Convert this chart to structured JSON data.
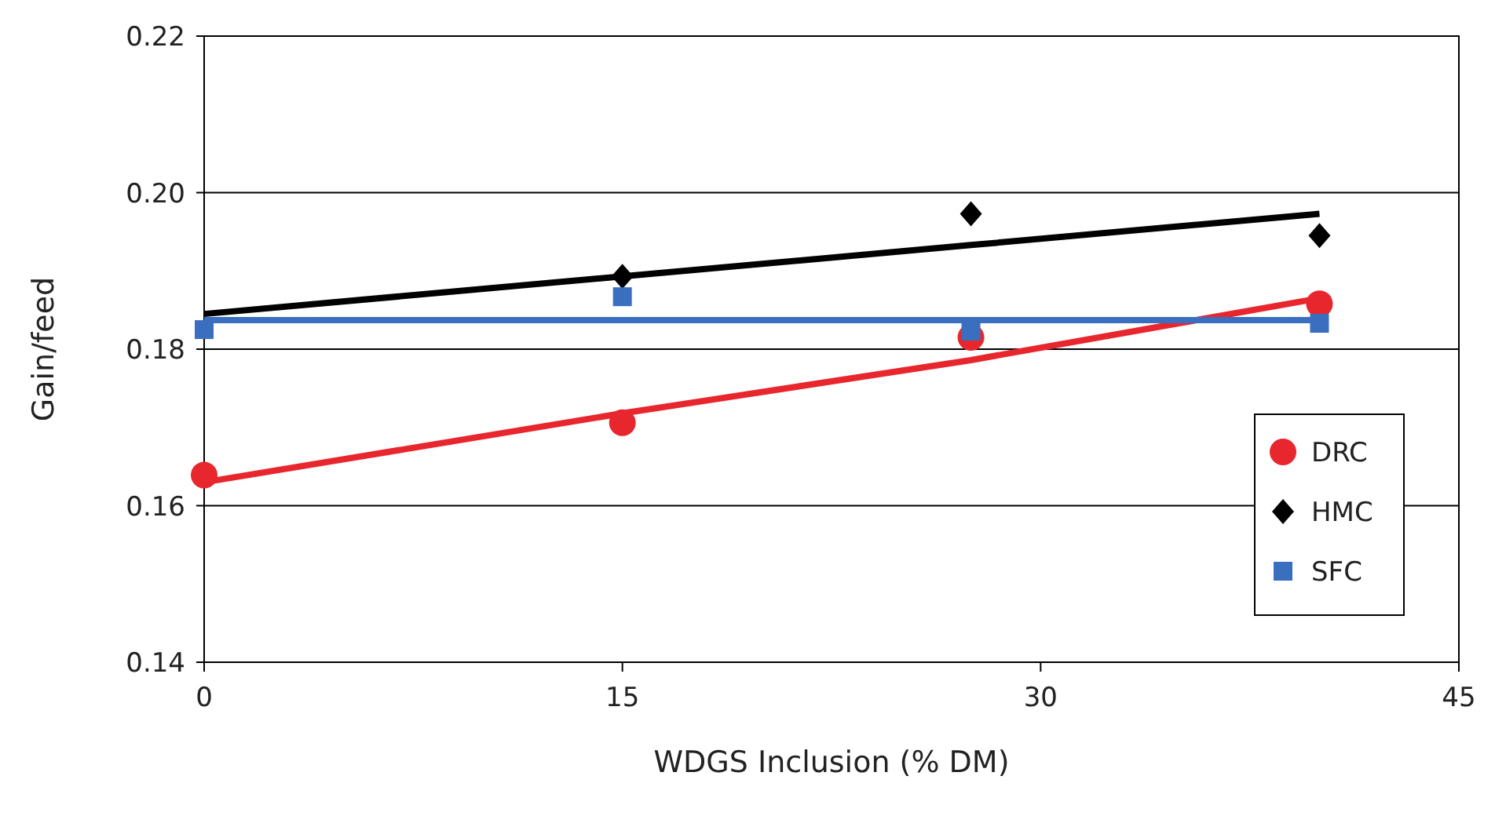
{
  "chart_data": {
    "type": "scatter",
    "xlabel": "WDGS Inclusion (% DM)",
    "ylabel": "Gain/feed",
    "x": [
      0,
      15,
      27.5,
      40
    ],
    "xlim": [
      0,
      45
    ],
    "xticks": [
      0,
      15,
      30,
      45
    ],
    "ylim": [
      0.14,
      0.22
    ],
    "yticks": [
      0.14,
      0.16,
      0.18,
      {
        "value": 0.2,
        "label": "0.20"
      },
      0.22
    ],
    "grid": "y",
    "legend": "bottom right",
    "series": [
      {
        "name": "DRC",
        "color": "#e8262e",
        "marker": "circle",
        "values": [
          0.1639,
          0.1706,
          0.1815,
          0.1858
        ]
      },
      {
        "name": "HMC",
        "color": "#000000",
        "marker": "diamond",
        "values": [
          null,
          0.1893,
          0.1973,
          0.1945
        ]
      },
      {
        "name": "SFC",
        "color": "#3a6fc0",
        "marker": "square",
        "values": [
          0.1825,
          0.1867,
          0.1823,
          0.1833
        ]
      },
      {
        "type": "line",
        "color": "#e8262e",
        "marker": "none",
        "values": [
          0.163,
          0.1718,
          0.1786,
          0.1865
        ]
      },
      {
        "type": "line",
        "color": "#000000",
        "marker": "none",
        "values": [
          0.1845,
          0.1893,
          0.1933,
          0.1973
        ]
      },
      {
        "type": "line",
        "color": "#3a6fc0",
        "marker": "none",
        "values": [
          0.1837,
          0.1837,
          0.1837,
          0.1837
        ]
      }
    ]
  }
}
